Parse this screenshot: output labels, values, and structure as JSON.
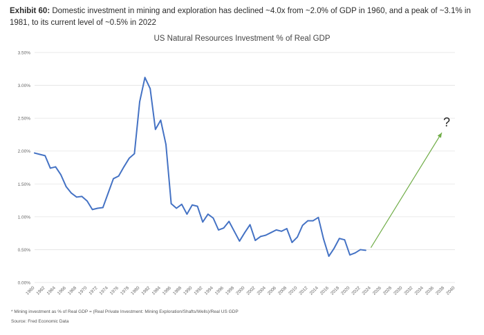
{
  "exhibit": {
    "label": "Exhibit 60:",
    "caption": "Domestic investment in mining and exploration has declined ~4.0x from ~2.0% of GDP in 1960, and a peak of ~3.1% in 1981, to its current level of ~0.5% in 2022"
  },
  "footnotes": {
    "note": "* Mining investment as % of Real GDP = (Real Private Investment: Mining Exploration/Shafts/Wells)/Real US GDP",
    "source": "Source: Fred Economic Data"
  },
  "colors": {
    "series": "#4472c4",
    "arrow": "#70ad47",
    "grid": "#e3e3e3"
  },
  "chart_data": {
    "type": "line",
    "title": "US Natural Resources Investment % of Real GDP",
    "xlabel": "",
    "ylabel": "",
    "xlim": [
      1960,
      2040
    ],
    "ylim": [
      0,
      3.5
    ],
    "grid": true,
    "y_ticks": [
      "0.00%",
      "0.50%",
      "1.00%",
      "1.50%",
      "2.00%",
      "2.50%",
      "3.00%",
      "3.50%"
    ],
    "x_ticks": [
      "1960",
      "1962",
      "1964",
      "1966",
      "1968",
      "1970",
      "1972",
      "1974",
      "1976",
      "1978",
      "1980",
      "1982",
      "1984",
      "1986",
      "1988",
      "1990",
      "1992",
      "1994",
      "1996",
      "1998",
      "2000",
      "2002",
      "2004",
      "2006",
      "2008",
      "2010",
      "2012",
      "2014",
      "2016",
      "2018",
      "2020",
      "2022",
      "2024",
      "2026",
      "2028",
      "2030",
      "2032",
      "2034",
      "2036",
      "2038",
      "2040"
    ],
    "series": [
      {
        "name": "Mining investment % of Real GDP",
        "x": [
          1960,
          1961,
          1962,
          1963,
          1964,
          1965,
          1966,
          1967,
          1968,
          1969,
          1970,
          1971,
          1972,
          1973,
          1974,
          1975,
          1976,
          1977,
          1978,
          1979,
          1980,
          1981,
          1982,
          1983,
          1984,
          1985,
          1986,
          1987,
          1988,
          1989,
          1990,
          1991,
          1992,
          1993,
          1994,
          1995,
          1996,
          1997,
          1998,
          1999,
          2000,
          2001,
          2002,
          2003,
          2004,
          2005,
          2006,
          2007,
          2008,
          2009,
          2010,
          2011,
          2012,
          2013,
          2014,
          2015,
          2016,
          2017,
          2018,
          2019,
          2020,
          2021,
          2022,
          2023
        ],
        "values": [
          1.97,
          1.95,
          1.93,
          1.74,
          1.76,
          1.64,
          1.46,
          1.36,
          1.3,
          1.31,
          1.24,
          1.11,
          1.13,
          1.14,
          1.36,
          1.58,
          1.62,
          1.76,
          1.89,
          1.96,
          2.75,
          3.12,
          2.95,
          2.33,
          2.47,
          2.1,
          1.2,
          1.13,
          1.19,
          1.04,
          1.18,
          1.16,
          0.92,
          1.04,
          0.98,
          0.8,
          0.83,
          0.93,
          0.78,
          0.63,
          0.76,
          0.88,
          0.64,
          0.7,
          0.72,
          0.76,
          0.8,
          0.78,
          0.82,
          0.61,
          0.69,
          0.87,
          0.94,
          0.94,
          0.99,
          0.66,
          0.4,
          0.52,
          0.67,
          0.65,
          0.42,
          0.45,
          0.5,
          0.49
        ]
      }
    ],
    "annotations": [
      {
        "type": "arrow",
        "from": [
          2024,
          0.53
        ],
        "to": [
          2037.5,
          2.28
        ],
        "label": "?"
      }
    ]
  }
}
